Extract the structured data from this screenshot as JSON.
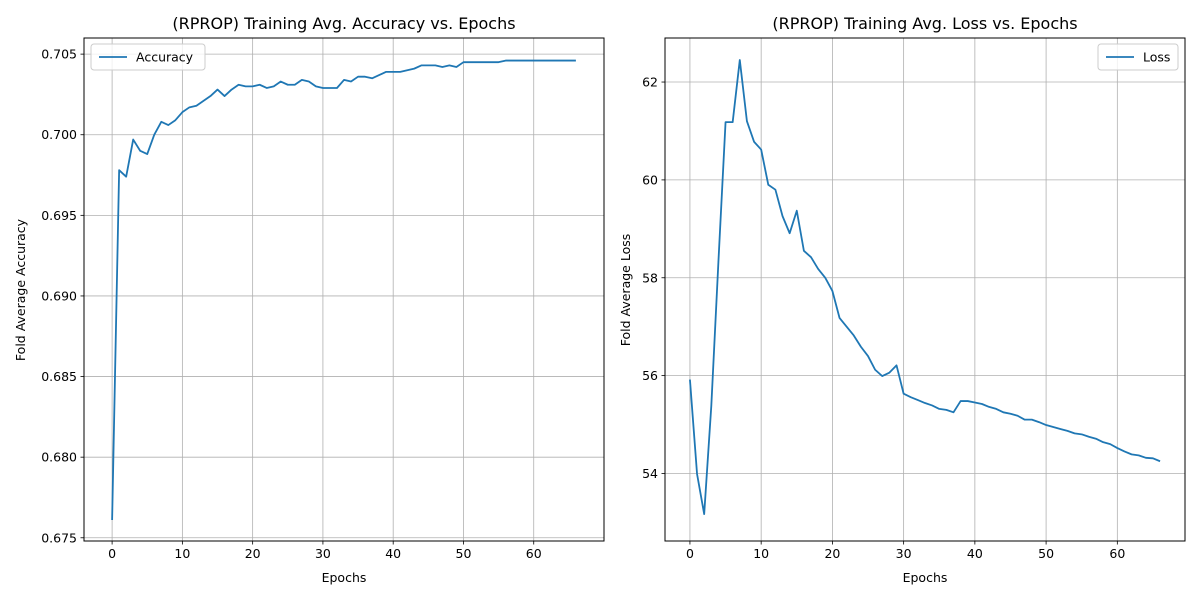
{
  "chart_data": [
    {
      "type": "line",
      "title": "(RPROP) Training Avg. Accuracy vs. Epochs",
      "xlabel": "Epochs",
      "ylabel": "Fold Average Accuracy",
      "xlim": [
        -4,
        70
      ],
      "ylim": [
        0.6748,
        0.706
      ],
      "xticks": [
        0,
        10,
        20,
        30,
        40,
        50,
        60
      ],
      "yticks": [
        0.675,
        0.68,
        0.685,
        0.69,
        0.695,
        0.7,
        0.705
      ],
      "ytick_labels": [
        "0.675",
        "0.680",
        "0.685",
        "0.690",
        "0.695",
        "0.700",
        "0.705"
      ],
      "grid": true,
      "legend_position": "upper-left",
      "color": "#1f77b4",
      "series": [
        {
          "name": "Accuracy",
          "x": [
            0,
            1,
            2,
            3,
            4,
            5,
            6,
            7,
            8,
            9,
            10,
            11,
            12,
            13,
            14,
            15,
            16,
            17,
            18,
            19,
            20,
            21,
            22,
            23,
            24,
            25,
            26,
            27,
            28,
            29,
            30,
            31,
            32,
            33,
            34,
            35,
            36,
            37,
            38,
            39,
            40,
            41,
            42,
            43,
            44,
            45,
            46,
            47,
            48,
            49,
            50,
            51,
            52,
            53,
            54,
            55,
            56,
            57,
            58,
            59,
            60,
            61,
            62,
            63,
            64,
            65,
            66
          ],
          "values": [
            0.6761,
            0.6978,
            0.6974,
            0.6997,
            0.699,
            0.6988,
            0.7,
            0.7008,
            0.7006,
            0.7009,
            0.7014,
            0.7017,
            0.7018,
            0.7021,
            0.7024,
            0.7028,
            0.7024,
            0.7028,
            0.7031,
            0.703,
            0.703,
            0.7031,
            0.7029,
            0.703,
            0.7033,
            0.7031,
            0.7031,
            0.7034,
            0.7033,
            0.703,
            0.7029,
            0.7029,
            0.7029,
            0.7034,
            0.7033,
            0.7036,
            0.7036,
            0.7035,
            0.7037,
            0.7039,
            0.7039,
            0.7039,
            0.704,
            0.7041,
            0.7043,
            0.7043,
            0.7043,
            0.7042,
            0.7043,
            0.7042,
            0.7045,
            0.7045,
            0.7045,
            0.7045,
            0.7045,
            0.7045,
            0.7046,
            0.7046,
            0.7046,
            0.7046,
            0.7046,
            0.7046,
            0.7046,
            0.7046,
            0.7046,
            0.7046,
            0.7046
          ]
        }
      ]
    },
    {
      "type": "line",
      "title": "(RPROP) Training Avg. Loss vs. Epochs",
      "xlabel": "Epochs",
      "ylabel": "Fold Average Loss",
      "xlim": [
        -3.5,
        69.5
      ],
      "ylim": [
        52.62,
        62.9
      ],
      "xticks": [
        0,
        10,
        20,
        30,
        40,
        50,
        60
      ],
      "yticks": [
        54,
        56,
        58,
        60,
        62
      ],
      "ytick_labels": [
        "54",
        "56",
        "58",
        "60",
        "62"
      ],
      "grid": true,
      "legend_position": "upper-right",
      "color": "#1f77b4",
      "series": [
        {
          "name": "Loss",
          "x": [
            0,
            1,
            2,
            3,
            4,
            5,
            6,
            7,
            8,
            9,
            10,
            11,
            12,
            13,
            14,
            15,
            16,
            17,
            18,
            19,
            20,
            21,
            22,
            23,
            24,
            25,
            26,
            27,
            28,
            29,
            30,
            31,
            32,
            33,
            34,
            35,
            36,
            37,
            38,
            39,
            40,
            41,
            42,
            43,
            44,
            45,
            46,
            47,
            48,
            49,
            50,
            51,
            52,
            53,
            54,
            55,
            56,
            57,
            58,
            59,
            60,
            61,
            62,
            63,
            64,
            65,
            66
          ],
          "values": [
            55.92,
            53.99,
            53.17,
            55.38,
            58.33,
            61.18,
            61.18,
            62.45,
            61.2,
            60.78,
            60.62,
            59.9,
            59.8,
            59.26,
            58.91,
            59.37,
            58.55,
            58.42,
            58.18,
            58.0,
            57.73,
            57.18,
            57.0,
            56.82,
            56.59,
            56.4,
            56.12,
            55.99,
            56.06,
            56.21,
            55.63,
            55.56,
            55.5,
            55.44,
            55.39,
            55.32,
            55.3,
            55.25,
            55.48,
            55.48,
            55.45,
            55.42,
            55.36,
            55.32,
            55.25,
            55.22,
            55.18,
            55.1,
            55.1,
            55.05,
            54.99,
            54.95,
            54.91,
            54.87,
            54.82,
            54.8,
            54.75,
            54.71,
            54.64,
            54.6,
            54.52,
            54.45,
            54.39,
            54.37,
            54.32,
            54.31,
            54.25
          ]
        }
      ]
    }
  ]
}
